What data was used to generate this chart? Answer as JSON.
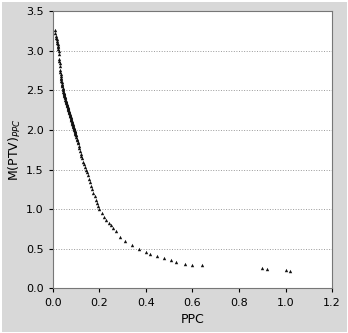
{
  "title": "",
  "xlabel": "PPC",
  "ylabel": "M(PTV)$_{PPC}$",
  "xlim": [
    0,
    1.2
  ],
  "ylim": [
    0.0,
    3.5
  ],
  "xticks": [
    0.0,
    0.2,
    0.4,
    0.6,
    0.8,
    1.0,
    1.2
  ],
  "yticks": [
    0.0,
    0.5,
    1.0,
    1.5,
    2.0,
    2.5,
    3.0,
    3.5
  ],
  "marker_color": "#111111",
  "background_color": "#d8d8d8",
  "plot_bg_color": "#ffffff",
  "grid_color": "#999999",
  "marker_size": 6,
  "scatter_data": {
    "ppc": [
      0.01,
      0.012,
      0.014,
      0.016,
      0.018,
      0.02,
      0.021,
      0.022,
      0.023,
      0.024,
      0.025,
      0.026,
      0.027,
      0.028,
      0.029,
      0.03,
      0.031,
      0.032,
      0.033,
      0.034,
      0.035,
      0.036,
      0.037,
      0.038,
      0.039,
      0.04,
      0.041,
      0.042,
      0.043,
      0.044,
      0.045,
      0.046,
      0.047,
      0.048,
      0.049,
      0.05,
      0.051,
      0.052,
      0.053,
      0.054,
      0.055,
      0.056,
      0.057,
      0.058,
      0.059,
      0.06,
      0.061,
      0.062,
      0.063,
      0.064,
      0.065,
      0.066,
      0.067,
      0.068,
      0.069,
      0.07,
      0.071,
      0.072,
      0.073,
      0.074,
      0.075,
      0.076,
      0.077,
      0.078,
      0.079,
      0.08,
      0.081,
      0.082,
      0.083,
      0.084,
      0.085,
      0.086,
      0.087,
      0.088,
      0.089,
      0.09,
      0.091,
      0.092,
      0.093,
      0.094,
      0.095,
      0.096,
      0.097,
      0.098,
      0.099,
      0.1,
      0.102,
      0.104,
      0.106,
      0.108,
      0.11,
      0.112,
      0.115,
      0.118,
      0.12,
      0.123,
      0.126,
      0.13,
      0.134,
      0.138,
      0.142,
      0.146,
      0.15,
      0.155,
      0.16,
      0.165,
      0.17,
      0.175,
      0.18,
      0.185,
      0.19,
      0.195,
      0.2,
      0.21,
      0.22,
      0.23,
      0.24,
      0.25,
      0.26,
      0.27,
      0.29,
      0.31,
      0.34,
      0.37,
      0.4,
      0.42,
      0.45,
      0.48,
      0.51,
      0.53,
      0.57,
      0.6,
      0.64,
      0.9,
      0.92,
      1.0,
      1.02
    ],
    "mptv": [
      3.26,
      3.22,
      3.18,
      3.16,
      3.14,
      3.12,
      3.1,
      3.08,
      3.06,
      3.04,
      3.02,
      3.0,
      2.96,
      2.9,
      2.87,
      2.84,
      2.8,
      2.76,
      2.73,
      2.7,
      2.68,
      2.66,
      2.64,
      2.62,
      2.6,
      2.58,
      2.56,
      2.55,
      2.53,
      2.52,
      2.5,
      2.48,
      2.47,
      2.46,
      2.45,
      2.44,
      2.43,
      2.42,
      2.41,
      2.4,
      2.38,
      2.37,
      2.36,
      2.35,
      2.34,
      2.33,
      2.32,
      2.31,
      2.3,
      2.29,
      2.28,
      2.27,
      2.26,
      2.25,
      2.24,
      2.23,
      2.22,
      2.21,
      2.2,
      2.19,
      2.18,
      2.17,
      2.16,
      2.15,
      2.14,
      2.13,
      2.12,
      2.11,
      2.1,
      2.09,
      2.08,
      2.07,
      2.06,
      2.05,
      2.04,
      2.03,
      2.02,
      2.01,
      2.0,
      1.99,
      1.98,
      1.97,
      1.96,
      1.95,
      1.94,
      1.93,
      1.91,
      1.89,
      1.87,
      1.85,
      1.83,
      1.8,
      1.77,
      1.73,
      1.7,
      1.67,
      1.64,
      1.6,
      1.57,
      1.53,
      1.5,
      1.47,
      1.43,
      1.38,
      1.34,
      1.29,
      1.25,
      1.2,
      1.16,
      1.12,
      1.08,
      1.04,
      1.0,
      0.95,
      0.9,
      0.86,
      0.83,
      0.8,
      0.76,
      0.72,
      0.65,
      0.6,
      0.55,
      0.5,
      0.46,
      0.44,
      0.41,
      0.38,
      0.36,
      0.34,
      0.31,
      0.3,
      0.29,
      0.26,
      0.25,
      0.23,
      0.22
    ]
  }
}
